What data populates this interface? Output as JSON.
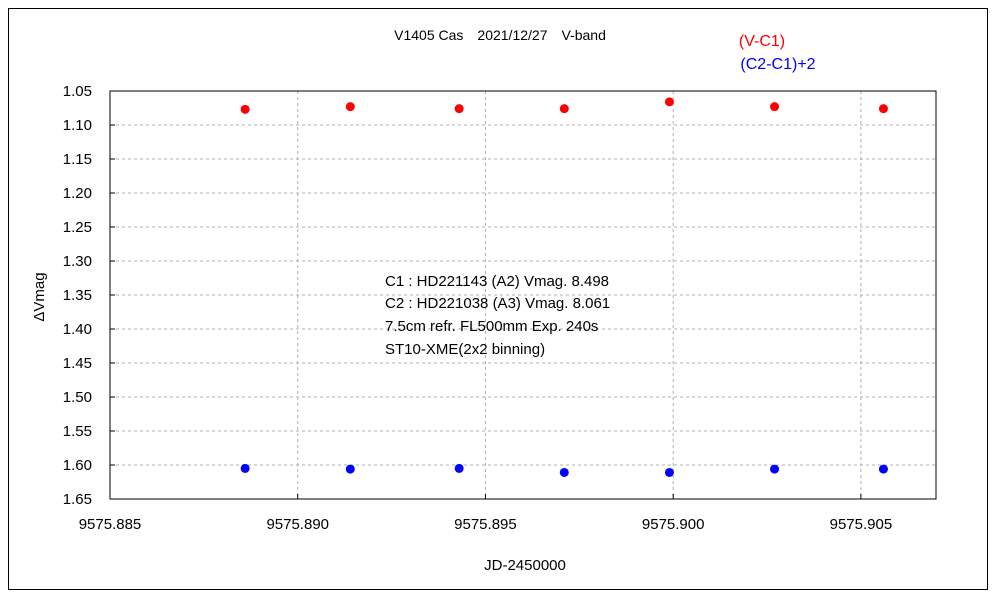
{
  "chart_data": {
    "type": "scatter",
    "title": "V1405 Cas　2021/12/27　V-band",
    "xlabel": "JD-2450000",
    "ylabel": "ΔVmag",
    "xlim": [
      9575.885,
      9575.907
    ],
    "ylim": [
      1.05,
      1.65
    ],
    "y_inverted": true,
    "grid": true,
    "x_ticks": [
      "9575.885",
      "9575.890",
      "9575.895",
      "9575.900",
      "9575.905"
    ],
    "x_tick_values": [
      9575.885,
      9575.89,
      9575.895,
      9575.9,
      9575.905
    ],
    "y_ticks": [
      "1.05",
      "1.10",
      "1.15",
      "1.20",
      "1.25",
      "1.30",
      "1.35",
      "1.40",
      "1.45",
      "1.50",
      "1.55",
      "1.60",
      "1.65"
    ],
    "y_tick_values": [
      1.05,
      1.1,
      1.15,
      1.2,
      1.25,
      1.3,
      1.35,
      1.4,
      1.45,
      1.5,
      1.55,
      1.6,
      1.65
    ],
    "series": [
      {
        "name": "(V-C1)",
        "color": "#ff0000",
        "x": [
          9575.8886,
          9575.8914,
          9575.8943,
          9575.8971,
          9575.8999,
          9575.9027,
          9575.9056
        ],
        "y": [
          1.077,
          1.073,
          1.076,
          1.076,
          1.066,
          1.073,
          1.076
        ]
      },
      {
        "name": "(C2-C1)+2",
        "color": "#0000ff",
        "x": [
          9575.8886,
          9575.8914,
          9575.8943,
          9575.8971,
          9575.8999,
          9575.9027,
          9575.9056
        ],
        "y": [
          1.605,
          1.606,
          1.605,
          1.611,
          1.611,
          1.606,
          1.606
        ]
      }
    ],
    "annotations": [
      "C1 : HD221143 (A2) Vmag. 8.498",
      "C2 : HD221038 (A3) Vmag. 8.061",
      "7.5cm refr. FL500mm Exp. 240s",
      "ST10-XME(2x2 binning)"
    ]
  }
}
